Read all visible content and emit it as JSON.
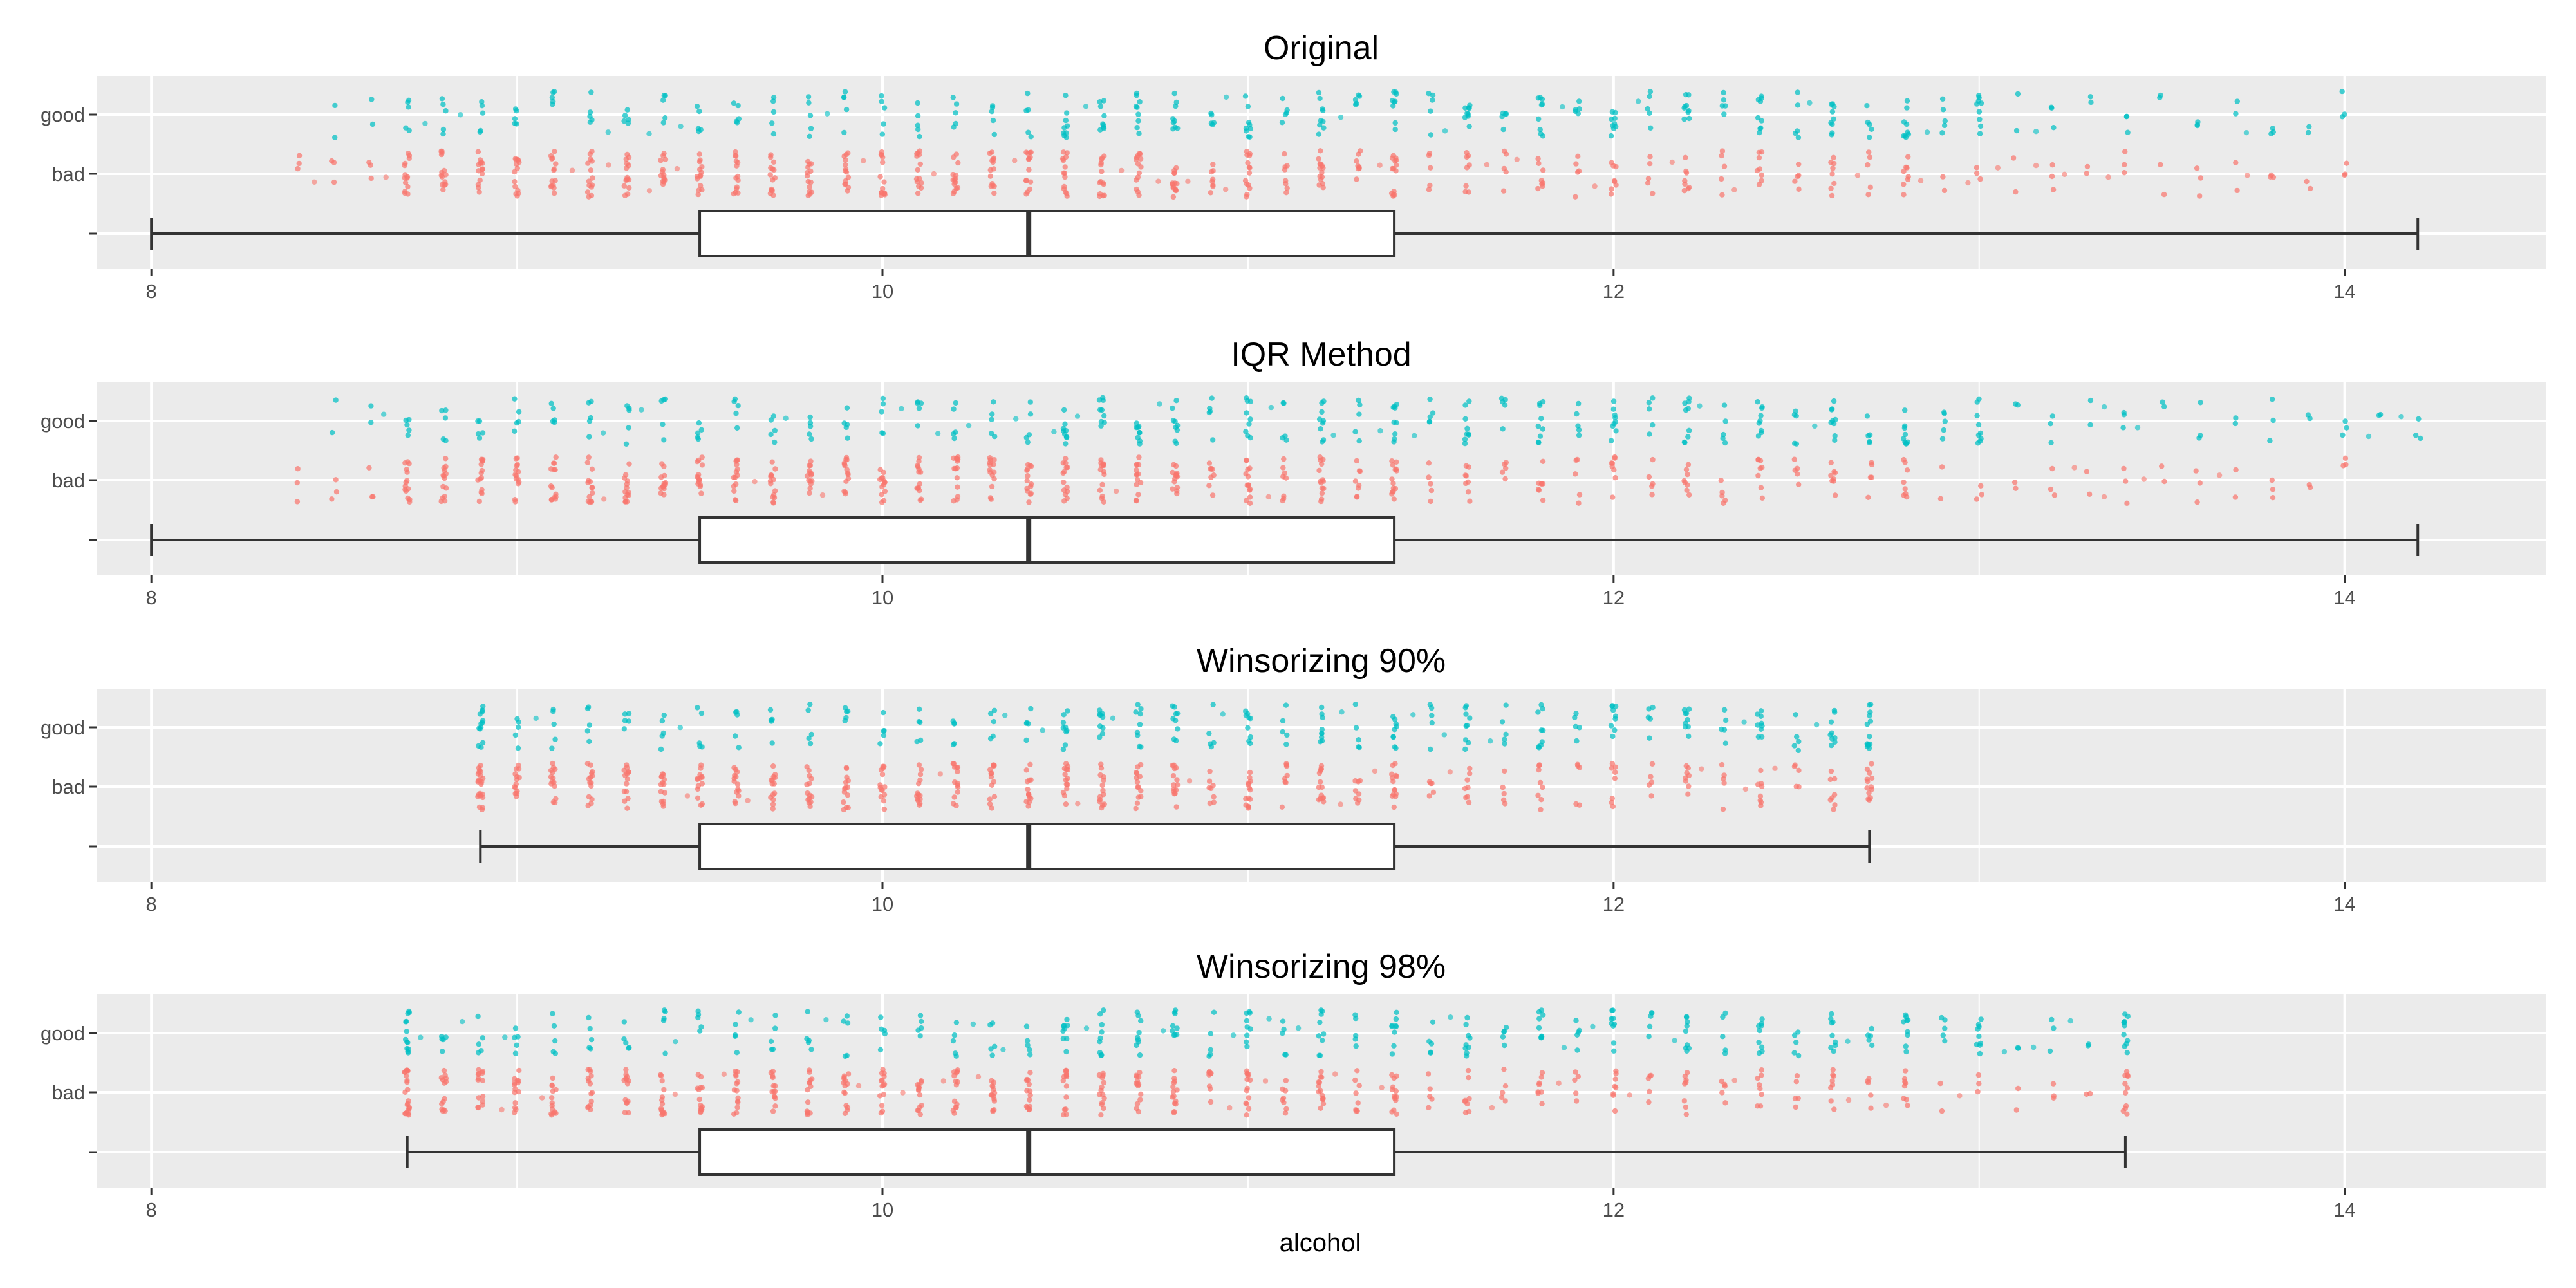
{
  "chart_data": {
    "type": "boxplot-jitter",
    "xlabel": "alcohol",
    "xlim": [
      7.85,
      14.55
    ],
    "x_ticks": [
      8,
      10,
      12,
      14
    ],
    "y_categories": [
      "good",
      "bad",
      ""
    ],
    "point_groups": [
      {
        "name": "good",
        "color": "#00BFC4"
      },
      {
        "name": "bad",
        "color": "#F8766D"
      }
    ],
    "panels": [
      {
        "title": "Original",
        "box": {
          "min": 8.0,
          "q1": 9.5,
          "median": 10.4,
          "q3": 11.4,
          "max": 14.2
        },
        "points": {
          "good": {
            "range": [
              8.5,
              14.0
            ]
          },
          "bad": {
            "range": [
              8.4,
              14.0
            ]
          }
        }
      },
      {
        "title": "IQR Method",
        "box": {
          "min": 8.0,
          "q1": 9.5,
          "median": 10.4,
          "q3": 11.4,
          "max": 14.2
        },
        "points": {
          "good": {
            "range": [
              8.5,
              14.2
            ]
          },
          "bad": {
            "range": [
              8.4,
              14.0
            ]
          }
        }
      },
      {
        "title": "Winsorizing 90%",
        "box": {
          "min": 8.9,
          "q1": 9.5,
          "median": 10.4,
          "q3": 11.4,
          "max": 12.7
        },
        "points": {
          "good": {
            "range": [
              8.9,
              12.7
            ]
          },
          "bad": {
            "range": [
              8.9,
              12.7
            ]
          }
        }
      },
      {
        "title": "Winsorizing 98%",
        "box": {
          "min": 8.7,
          "q1": 9.5,
          "median": 10.4,
          "q3": 11.4,
          "max": 13.4
        },
        "points": {
          "good": {
            "range": [
              8.7,
              13.4
            ]
          },
          "bad": {
            "range": [
              8.7,
              13.4
            ]
          }
        }
      }
    ]
  }
}
